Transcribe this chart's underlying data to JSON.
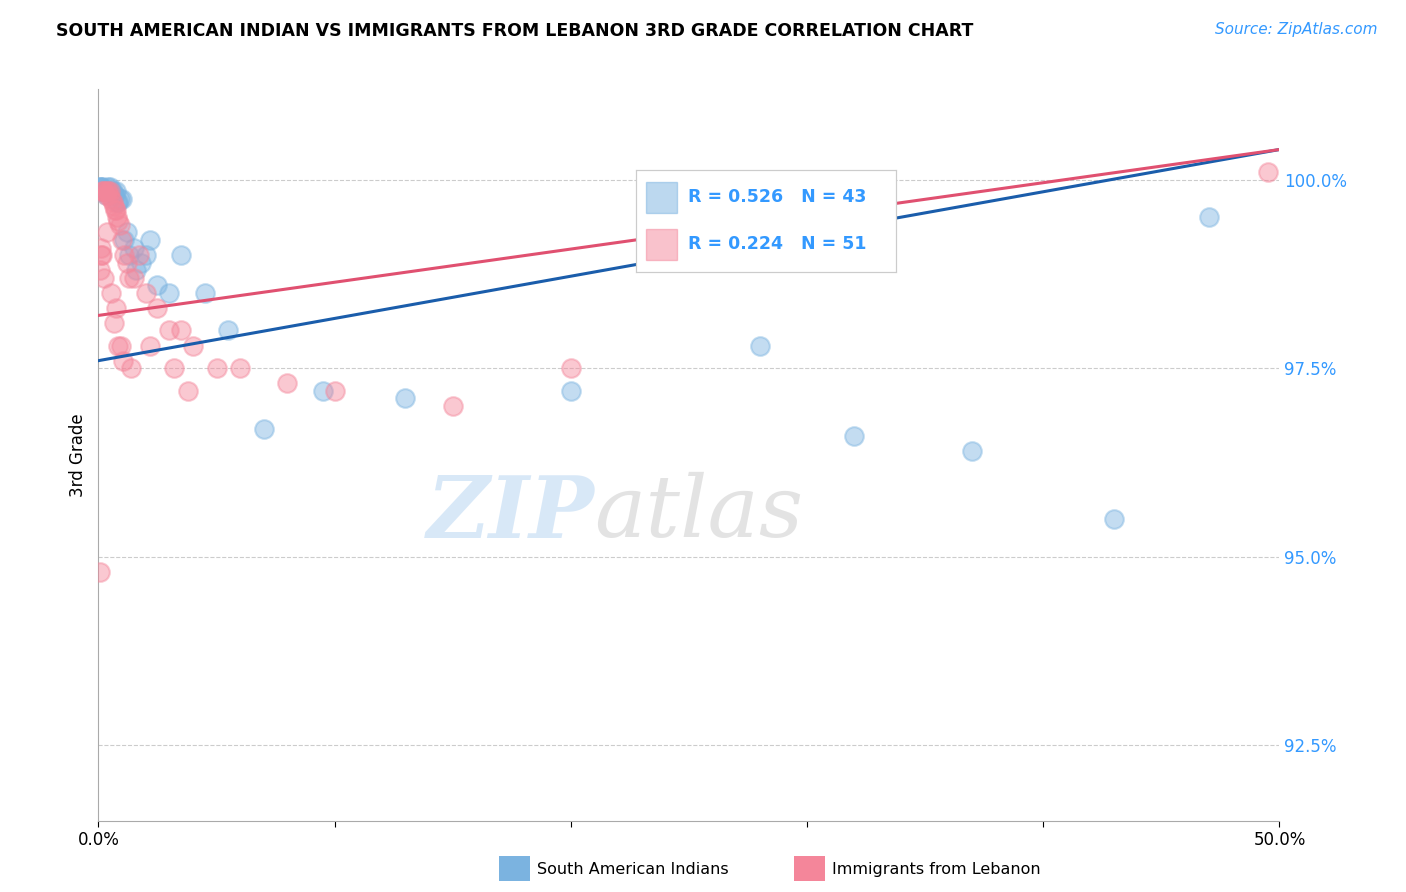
{
  "title": "SOUTH AMERICAN INDIAN VS IMMIGRANTS FROM LEBANON 3RD GRADE CORRELATION CHART",
  "source": "Source: ZipAtlas.com",
  "ylabel": "3rd Grade",
  "xmin": 0.0,
  "xmax": 50.0,
  "ymin": 91.5,
  "ymax": 101.2,
  "yticks": [
    92.5,
    95.0,
    97.5,
    100.0
  ],
  "ytick_labels": [
    "92.5%",
    "95.0%",
    "97.5%",
    "100.0%"
  ],
  "blue_color": "#7BB3E0",
  "pink_color": "#F4869A",
  "blue_line_color": "#1A5DAB",
  "pink_line_color": "#E05070",
  "blue_R": 0.526,
  "blue_N": 43,
  "pink_R": 0.224,
  "pink_N": 51,
  "blue_scatter_x": [
    0.1,
    0.15,
    0.2,
    0.25,
    0.3,
    0.35,
    0.4,
    0.45,
    0.5,
    0.55,
    0.6,
    0.65,
    0.7,
    0.75,
    0.8,
    0.85,
    0.9,
    1.0,
    1.1,
    1.2,
    1.3,
    1.5,
    1.6,
    1.8,
    2.0,
    2.2,
    2.5,
    3.0,
    3.5,
    4.5,
    5.5,
    7.0,
    9.5,
    13.0,
    20.0,
    28.0,
    32.0,
    37.0,
    43.0,
    47.0,
    0.05,
    0.08,
    0.12
  ],
  "blue_scatter_y": [
    99.85,
    99.85,
    99.9,
    99.85,
    99.8,
    99.85,
    99.9,
    99.85,
    99.9,
    99.85,
    99.85,
    99.8,
    99.8,
    99.85,
    99.7,
    99.7,
    99.75,
    99.75,
    99.2,
    99.3,
    99.0,
    99.1,
    98.8,
    98.9,
    99.0,
    99.2,
    98.6,
    98.5,
    99.0,
    98.5,
    98.0,
    96.7,
    97.2,
    97.1,
    97.2,
    97.8,
    96.6,
    96.4,
    95.5,
    99.5,
    99.9,
    99.9,
    99.9
  ],
  "pink_scatter_x": [
    0.05,
    0.08,
    0.1,
    0.12,
    0.15,
    0.2,
    0.25,
    0.3,
    0.35,
    0.4,
    0.45,
    0.5,
    0.55,
    0.6,
    0.65,
    0.7,
    0.75,
    0.8,
    0.85,
    0.9,
    1.0,
    1.1,
    1.2,
    1.3,
    1.5,
    1.7,
    2.0,
    2.5,
    3.0,
    3.5,
    4.0,
    5.0,
    6.0,
    8.0,
    10.0,
    15.0,
    20.0,
    0.15,
    0.25,
    0.35,
    0.55,
    0.65,
    0.75,
    0.85,
    0.95,
    1.05,
    1.4,
    2.2,
    3.2,
    3.8,
    49.5
  ],
  "pink_scatter_y": [
    94.8,
    98.8,
    99.0,
    99.1,
    99.85,
    99.85,
    99.85,
    99.8,
    99.85,
    99.85,
    99.8,
    99.85,
    99.75,
    99.7,
    99.65,
    99.6,
    99.6,
    99.5,
    99.45,
    99.4,
    99.2,
    99.0,
    98.9,
    98.7,
    98.7,
    99.0,
    98.5,
    98.3,
    98.0,
    98.0,
    97.8,
    97.5,
    97.5,
    97.3,
    97.2,
    97.0,
    97.5,
    99.0,
    98.7,
    99.3,
    98.5,
    98.1,
    98.3,
    97.8,
    97.8,
    97.6,
    97.5,
    97.8,
    97.5,
    97.2,
    100.1
  ],
  "blue_trendline_x0": 0.0,
  "blue_trendline_y0": 97.6,
  "blue_trendline_x1": 50.0,
  "blue_trendline_y1": 100.4,
  "pink_trendline_x0": 0.0,
  "pink_trendline_y0": 98.2,
  "pink_trendline_x1": 50.0,
  "pink_trendline_y1": 100.4
}
